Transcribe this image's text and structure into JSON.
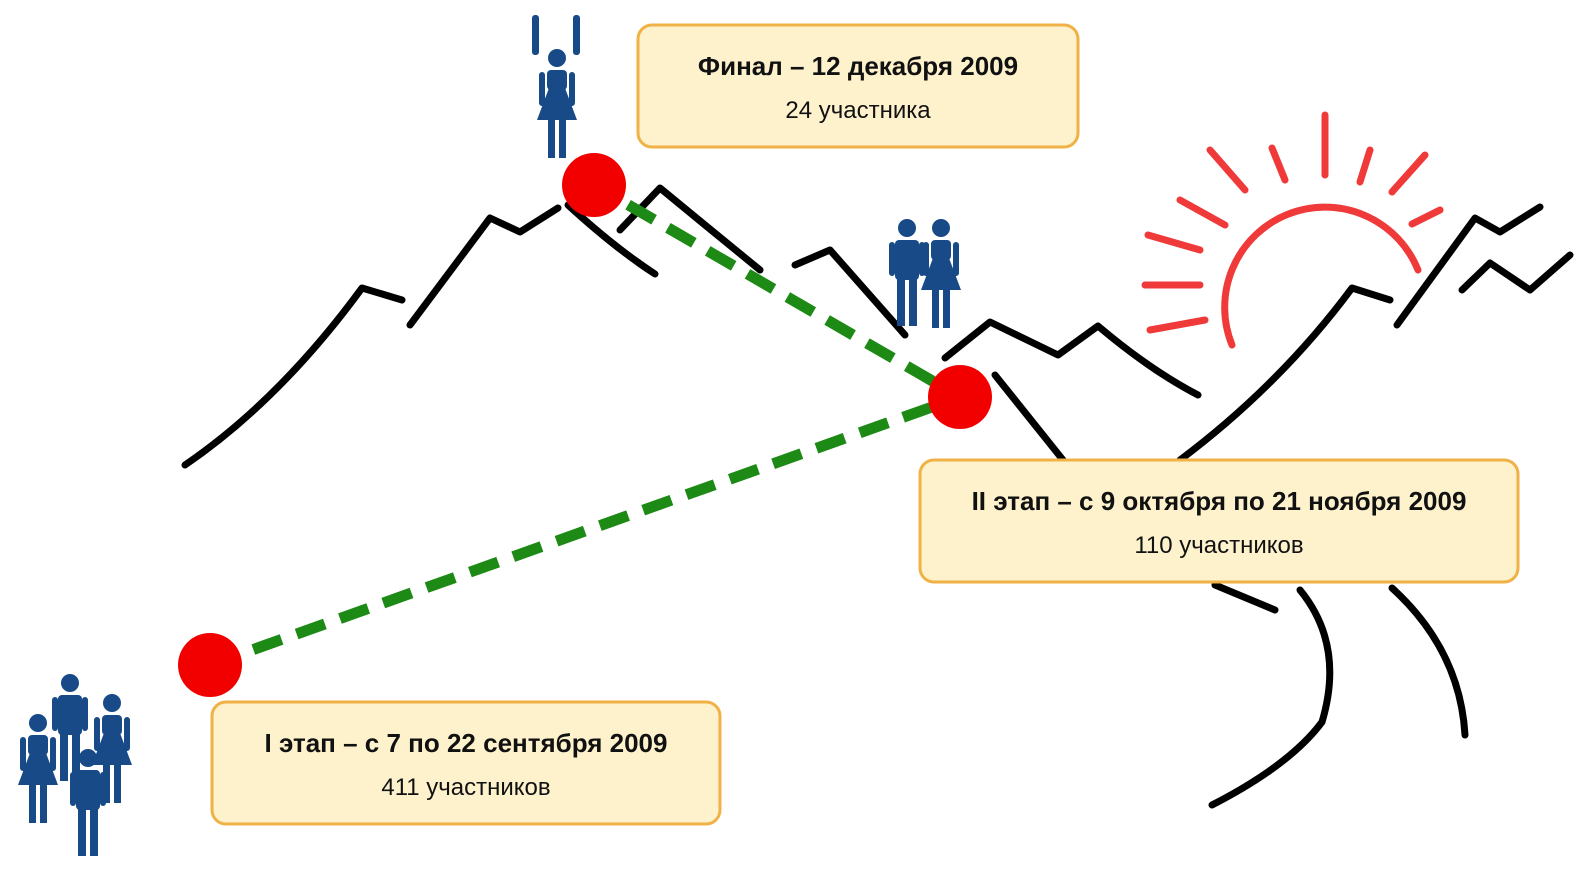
{
  "stages": [
    {
      "title": "I этап – с 7 по 22 сентября 2009",
      "participants": "411 участников"
    },
    {
      "title": "II этап – с 9 октября по 21 ноября 2009",
      "participants": "110 участников"
    },
    {
      "title": "Финал – 12 декабря 2009",
      "participants": "24 участника"
    }
  ]
}
